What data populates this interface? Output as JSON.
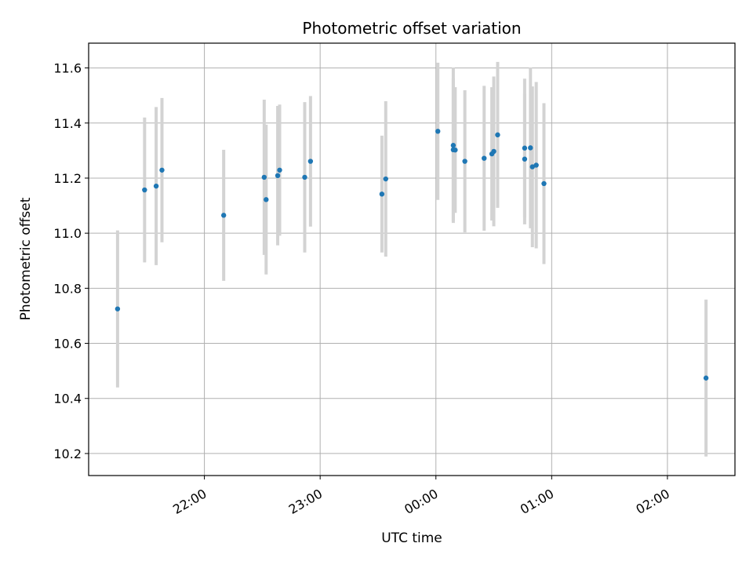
{
  "chart_data": {
    "type": "scatter",
    "title": "Photometric offset variation",
    "xlabel": "UTC time",
    "ylabel": "Photometric offset",
    "x_axis_type": "time",
    "x_tick_values": [
      "22:00",
      "23:00",
      "00:00",
      "01:00",
      "02:00"
    ],
    "xlim": [
      "21:00",
      "02:35"
    ],
    "ylim": [
      10.12,
      11.69
    ],
    "y_ticks": [
      10.2,
      10.4,
      10.6,
      10.8,
      11.0,
      11.2,
      11.4,
      11.6
    ],
    "grid": true,
    "colors": {
      "point": "#1f77b4",
      "errorbar": "#d3d3d3",
      "grid": "#b0b0b0"
    },
    "series": [
      {
        "points": [
          {
            "x": "21:15",
            "y": 10.725,
            "err": 0.285
          },
          {
            "x": "21:29",
            "y": 11.157,
            "err": 0.263
          },
          {
            "x": "21:35",
            "y": 11.171,
            "err": 0.287
          },
          {
            "x": "21:38",
            "y": 11.229,
            "err": 0.262
          },
          {
            "x": "22:10",
            "y": 11.065,
            "err": 0.238
          },
          {
            "x": "22:31",
            "y": 11.203,
            "err": 0.282
          },
          {
            "x": "22:32",
            "y": 11.122,
            "err": 0.272
          },
          {
            "x": "22:38",
            "y": 11.209,
            "err": 0.253
          },
          {
            "x": "22:39",
            "y": 11.229,
            "err": 0.238
          },
          {
            "x": "22:52",
            "y": 11.203,
            "err": 0.273
          },
          {
            "x": "22:55",
            "y": 11.261,
            "err": 0.237
          },
          {
            "x": "23:32",
            "y": 11.142,
            "err": 0.212
          },
          {
            "x": "23:34",
            "y": 11.197,
            "err": 0.282
          },
          {
            "x": "00:01",
            "y": 11.37,
            "err": 0.249
          },
          {
            "x": "00:09",
            "y": 11.303,
            "err": 0.259
          },
          {
            "x": "00:09",
            "y": 11.319,
            "err": 0.282
          },
          {
            "x": "00:10",
            "y": 11.302,
            "err": 0.228
          },
          {
            "x": "00:15",
            "y": 11.261,
            "err": 0.258
          },
          {
            "x": "00:25",
            "y": 11.272,
            "err": 0.263
          },
          {
            "x": "00:29",
            "y": 11.288,
            "err": 0.242
          },
          {
            "x": "00:30",
            "y": 11.297,
            "err": 0.272
          },
          {
            "x": "00:32",
            "y": 11.357,
            "err": 0.265
          },
          {
            "x": "00:46",
            "y": 11.269,
            "err": 0.237
          },
          {
            "x": "00:46",
            "y": 11.309,
            "err": 0.252
          },
          {
            "x": "00:49",
            "y": 11.31,
            "err": 0.292
          },
          {
            "x": "00:50",
            "y": 11.241,
            "err": 0.292
          },
          {
            "x": "00:52",
            "y": 11.247,
            "err": 0.302
          },
          {
            "x": "00:56",
            "y": 11.18,
            "err": 0.292
          },
          {
            "x": "02:20",
            "y": 10.474,
            "err": 0.285
          }
        ]
      }
    ]
  }
}
